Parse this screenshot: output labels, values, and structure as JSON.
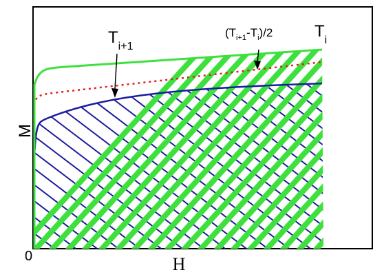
{
  "figure": {
    "y_axis_label": "M",
    "x_axis_label": "H",
    "origin_label": "0",
    "curve_label_upper": {
      "main": "T",
      "sub": "i"
    },
    "curve_label_lower": {
      "main": "T",
      "sub": "i+1"
    },
    "midpoint_label": {
      "open": "(T",
      "sub1": "i+1",
      "mid": "-T",
      "sub2": "i",
      "close": ")/2"
    }
  },
  "colors": {
    "upper_curve": "#3ee03e",
    "lower_curve": "#1c1ca0",
    "midpoint_line": "#e02020",
    "frame": "#000000"
  }
}
